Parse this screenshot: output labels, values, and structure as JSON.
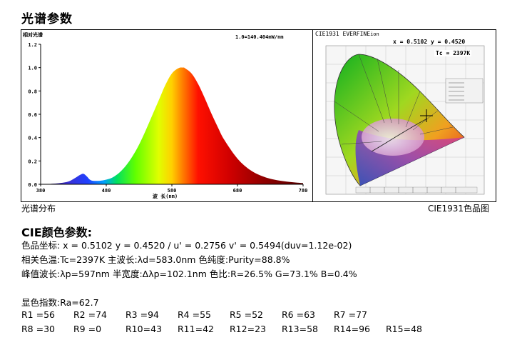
{
  "title": "光谱参数",
  "spectrum": {
    "ylabel": "相对光谱",
    "annotation": "1.0=140.404mW/nm",
    "xlabel": "波 长(nm)",
    "yticks": [
      "1.2",
      "1.0",
      "0.8",
      "0.6",
      "0.4",
      "0.2",
      "0.0"
    ],
    "xticks": [
      "380",
      "480",
      "580",
      "680",
      "780"
    ],
    "caption": "光谱分布"
  },
  "chart_data": {
    "type": "area",
    "xlabel": "波 长(nm)",
    "ylabel": "相对光谱",
    "xlim": [
      380,
      780
    ],
    "ylim": [
      0,
      1.2
    ],
    "grid": false,
    "x": [
      380,
      400,
      420,
      430,
      440,
      445,
      450,
      455,
      460,
      470,
      480,
      490,
      500,
      510,
      520,
      530,
      540,
      550,
      560,
      570,
      580,
      590,
      597,
      600,
      610,
      620,
      630,
      640,
      650,
      660,
      680,
      700,
      720,
      740,
      760,
      780
    ],
    "y": [
      0.0,
      0.005,
      0.02,
      0.045,
      0.08,
      0.09,
      0.07,
      0.04,
      0.03,
      0.03,
      0.04,
      0.06,
      0.1,
      0.16,
      0.24,
      0.34,
      0.46,
      0.59,
      0.72,
      0.85,
      0.95,
      0.995,
      1.0,
      0.995,
      0.95,
      0.86,
      0.74,
      0.61,
      0.49,
      0.38,
      0.22,
      0.12,
      0.065,
      0.035,
      0.02,
      0.01
    ]
  },
  "cie": {
    "title": "CIE1931 EVERFINE",
    "title_suffix": "ion",
    "coords": "x = 0.5102 y = 0.4520",
    "tc": "Tc = 2397K",
    "caption": "CIE1931色品图"
  },
  "params": {
    "heading": "CIE颜色参数:",
    "line1": "色品坐标: x = 0.5102 y = 0.4520 / u' = 0.2756 v' = 0.5494(duv=1.12e-02)",
    "line2": "相关色温:Tc=2397K  主波长:λd=583.0nm  色纯度:Purity=88.8%",
    "line3": "峰值波长:λp=597nm  半宽度:Δλp=102.1nm 色比:R=26.5% G=73.1% B=0.4%",
    "ra": "显色指数:Ra=62.7",
    "row1": [
      "R1 =56",
      "R2 =74",
      "R3 =94",
      "R4 =55",
      "R5 =52",
      "R6 =63",
      "R7 =77"
    ],
    "row2": [
      "R8 =30",
      "R9 =0",
      "R10=43",
      "R11=42",
      "R12=23",
      "R13=58",
      "R14=96",
      "R15=48"
    ]
  }
}
